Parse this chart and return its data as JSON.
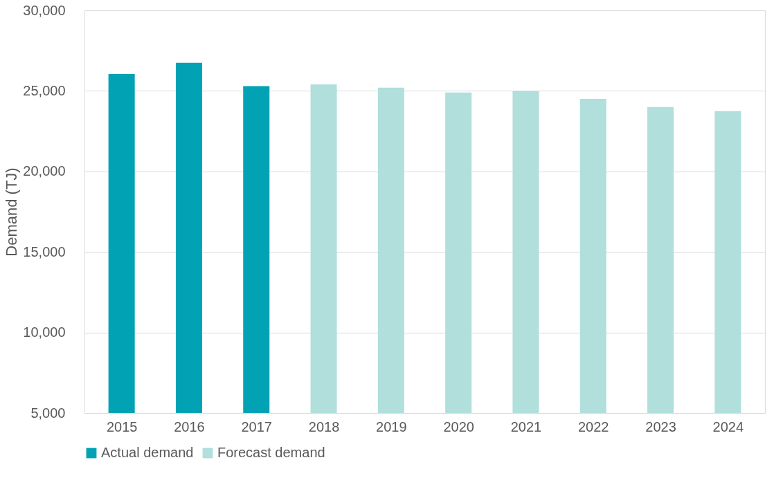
{
  "chart_data": {
    "type": "bar",
    "ylabel": "Demand (TJ)",
    "categories": [
      "2015",
      "2016",
      "2017",
      "2018",
      "2019",
      "2020",
      "2021",
      "2022",
      "2023",
      "2024"
    ],
    "series": [
      {
        "name": "Actual demand",
        "color": "#00a2b4",
        "values": [
          26050,
          26750,
          25300,
          null,
          null,
          null,
          null,
          null,
          null,
          null
        ]
      },
      {
        "name": "Forecast demand",
        "color": "#b0dfdc",
        "values": [
          null,
          null,
          null,
          25400,
          25200,
          24900,
          25000,
          24500,
          24000,
          23750
        ]
      }
    ],
    "ylim": [
      5000,
      30000
    ],
    "yticks": [
      {
        "value": 5000,
        "label": "5,000"
      },
      {
        "value": 10000,
        "label": "10,000"
      },
      {
        "value": 15000,
        "label": "15,000"
      },
      {
        "value": 20000,
        "label": "20,000"
      },
      {
        "value": 25000,
        "label": "25,000"
      },
      {
        "value": 30000,
        "label": "30,000"
      }
    ],
    "grid": "y",
    "legend": "bottom"
  }
}
